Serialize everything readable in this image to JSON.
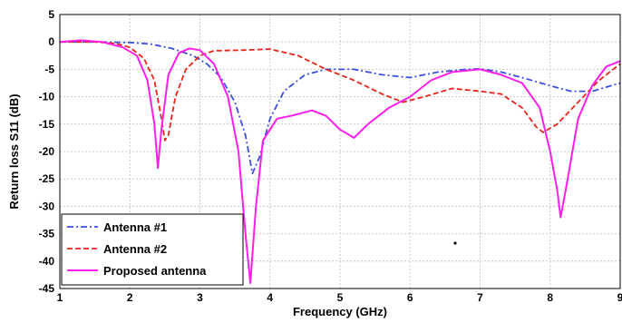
{
  "chart_data": {
    "type": "line",
    "xlabel": "Frequency (GHz)",
    "ylabel": "Return loss S11 (dB)",
    "xlim": [
      1,
      9
    ],
    "ylim": [
      -45,
      5
    ],
    "xticks": [
      1,
      2,
      3,
      4,
      5,
      6,
      7,
      8,
      9
    ],
    "yticks": [
      5,
      0,
      -5,
      -10,
      -15,
      -20,
      -25,
      -30,
      -35,
      -40,
      -45
    ],
    "grid": true,
    "legend_position": "bottom-left",
    "series": [
      {
        "name": "Antenna #1",
        "color": "#3b4fe0",
        "style": "dash-dot",
        "points": [
          [
            1,
            0
          ],
          [
            1.5,
            0
          ],
          [
            2,
            -0.1
          ],
          [
            2.3,
            -0.4
          ],
          [
            2.6,
            -1.2
          ],
          [
            2.9,
            -2.5
          ],
          [
            3.1,
            -4
          ],
          [
            3.3,
            -6.5
          ],
          [
            3.5,
            -11
          ],
          [
            3.65,
            -17
          ],
          [
            3.75,
            -24
          ],
          [
            3.85,
            -21
          ],
          [
            4,
            -14
          ],
          [
            4.2,
            -9
          ],
          [
            4.5,
            -6
          ],
          [
            4.8,
            -5
          ],
          [
            5.2,
            -5
          ],
          [
            5.6,
            -6
          ],
          [
            6,
            -6.5
          ],
          [
            6.4,
            -5.5
          ],
          [
            6.8,
            -5
          ],
          [
            7,
            -4.9
          ],
          [
            7.3,
            -5.5
          ],
          [
            7.6,
            -6.5
          ],
          [
            8,
            -8
          ],
          [
            8.3,
            -9
          ],
          [
            8.6,
            -9
          ],
          [
            9,
            -7.5
          ]
        ]
      },
      {
        "name": "Antenna #2",
        "color": "#e8261a",
        "style": "dashed",
        "points": [
          [
            1,
            0
          ],
          [
            1.5,
            0
          ],
          [
            1.8,
            -0.3
          ],
          [
            2,
            -1
          ],
          [
            2.2,
            -3
          ],
          [
            2.35,
            -7
          ],
          [
            2.45,
            -14
          ],
          [
            2.5,
            -18
          ],
          [
            2.55,
            -17
          ],
          [
            2.65,
            -10
          ],
          [
            2.8,
            -5
          ],
          [
            3,
            -2.5
          ],
          [
            3.2,
            -1.6
          ],
          [
            3.6,
            -1.5
          ],
          [
            4,
            -1.3
          ],
          [
            4.4,
            -2.5
          ],
          [
            4.8,
            -5
          ],
          [
            5.2,
            -7
          ],
          [
            5.6,
            -9.5
          ],
          [
            5.9,
            -11
          ],
          [
            6.2,
            -10
          ],
          [
            6.6,
            -8.5
          ],
          [
            7,
            -9
          ],
          [
            7.3,
            -9.5
          ],
          [
            7.6,
            -12
          ],
          [
            7.8,
            -15.5
          ],
          [
            7.9,
            -16.5
          ],
          [
            8.1,
            -15
          ],
          [
            8.4,
            -11
          ],
          [
            8.7,
            -7
          ],
          [
            9,
            -4
          ]
        ]
      },
      {
        "name": "Proposed antenna",
        "color": "#ff1eea",
        "style": "solid",
        "points": [
          [
            1,
            0
          ],
          [
            1.3,
            0.3
          ],
          [
            1.6,
            0
          ],
          [
            1.9,
            -1
          ],
          [
            2.1,
            -2.5
          ],
          [
            2.25,
            -7
          ],
          [
            2.35,
            -15
          ],
          [
            2.4,
            -23
          ],
          [
            2.45,
            -16
          ],
          [
            2.55,
            -6
          ],
          [
            2.7,
            -2
          ],
          [
            2.85,
            -1.2
          ],
          [
            3,
            -1.5
          ],
          [
            3.2,
            -4
          ],
          [
            3.4,
            -10
          ],
          [
            3.55,
            -20
          ],
          [
            3.65,
            -35
          ],
          [
            3.72,
            -44
          ],
          [
            3.8,
            -30
          ],
          [
            3.9,
            -18
          ],
          [
            4.1,
            -14
          ],
          [
            4.3,
            -13.5
          ],
          [
            4.6,
            -12.5
          ],
          [
            4.8,
            -13.5
          ],
          [
            5,
            -16
          ],
          [
            5.2,
            -17.5
          ],
          [
            5.4,
            -15
          ],
          [
            5.7,
            -12
          ],
          [
            6,
            -10
          ],
          [
            6.3,
            -7
          ],
          [
            6.6,
            -5.5
          ],
          [
            7,
            -5
          ],
          [
            7.3,
            -6
          ],
          [
            7.6,
            -7.5
          ],
          [
            7.85,
            -12
          ],
          [
            8,
            -20
          ],
          [
            8.1,
            -27
          ],
          [
            8.15,
            -32
          ],
          [
            8.25,
            -25
          ],
          [
            8.4,
            -14
          ],
          [
            8.6,
            -8
          ],
          [
            8.8,
            -4.5
          ],
          [
            9,
            -3.5
          ]
        ]
      }
    ]
  }
}
